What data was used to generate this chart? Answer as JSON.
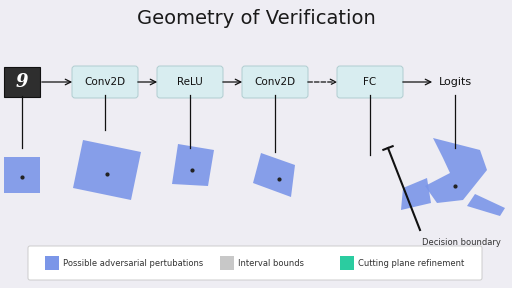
{
  "title": "Geometry of Verification",
  "title_fontsize": 14,
  "background_color": "#eeedf3",
  "node_labels": [
    "Conv2D",
    "ReLU",
    "Conv2D",
    "FC",
    "Logits"
  ],
  "node_bg": "#d8edf0",
  "node_border": "#b0cdd0",
  "arrow_color": "#111111",
  "blue_fill": "#7b96e8",
  "blue_alpha": 0.9,
  "dot_color": "#222222",
  "decision_boundary_label": "Decision boundary",
  "legend_items": [
    {
      "color": "#7b96e8",
      "label": "Possible adversarial pertubations"
    },
    {
      "color": "#c8c8c8",
      "label": "Interval bounds"
    },
    {
      "color": "#2bcca0",
      "label": "Cutting plane refinement"
    }
  ],
  "input_symbol": "9",
  "input_bg": "#2e2e2e"
}
